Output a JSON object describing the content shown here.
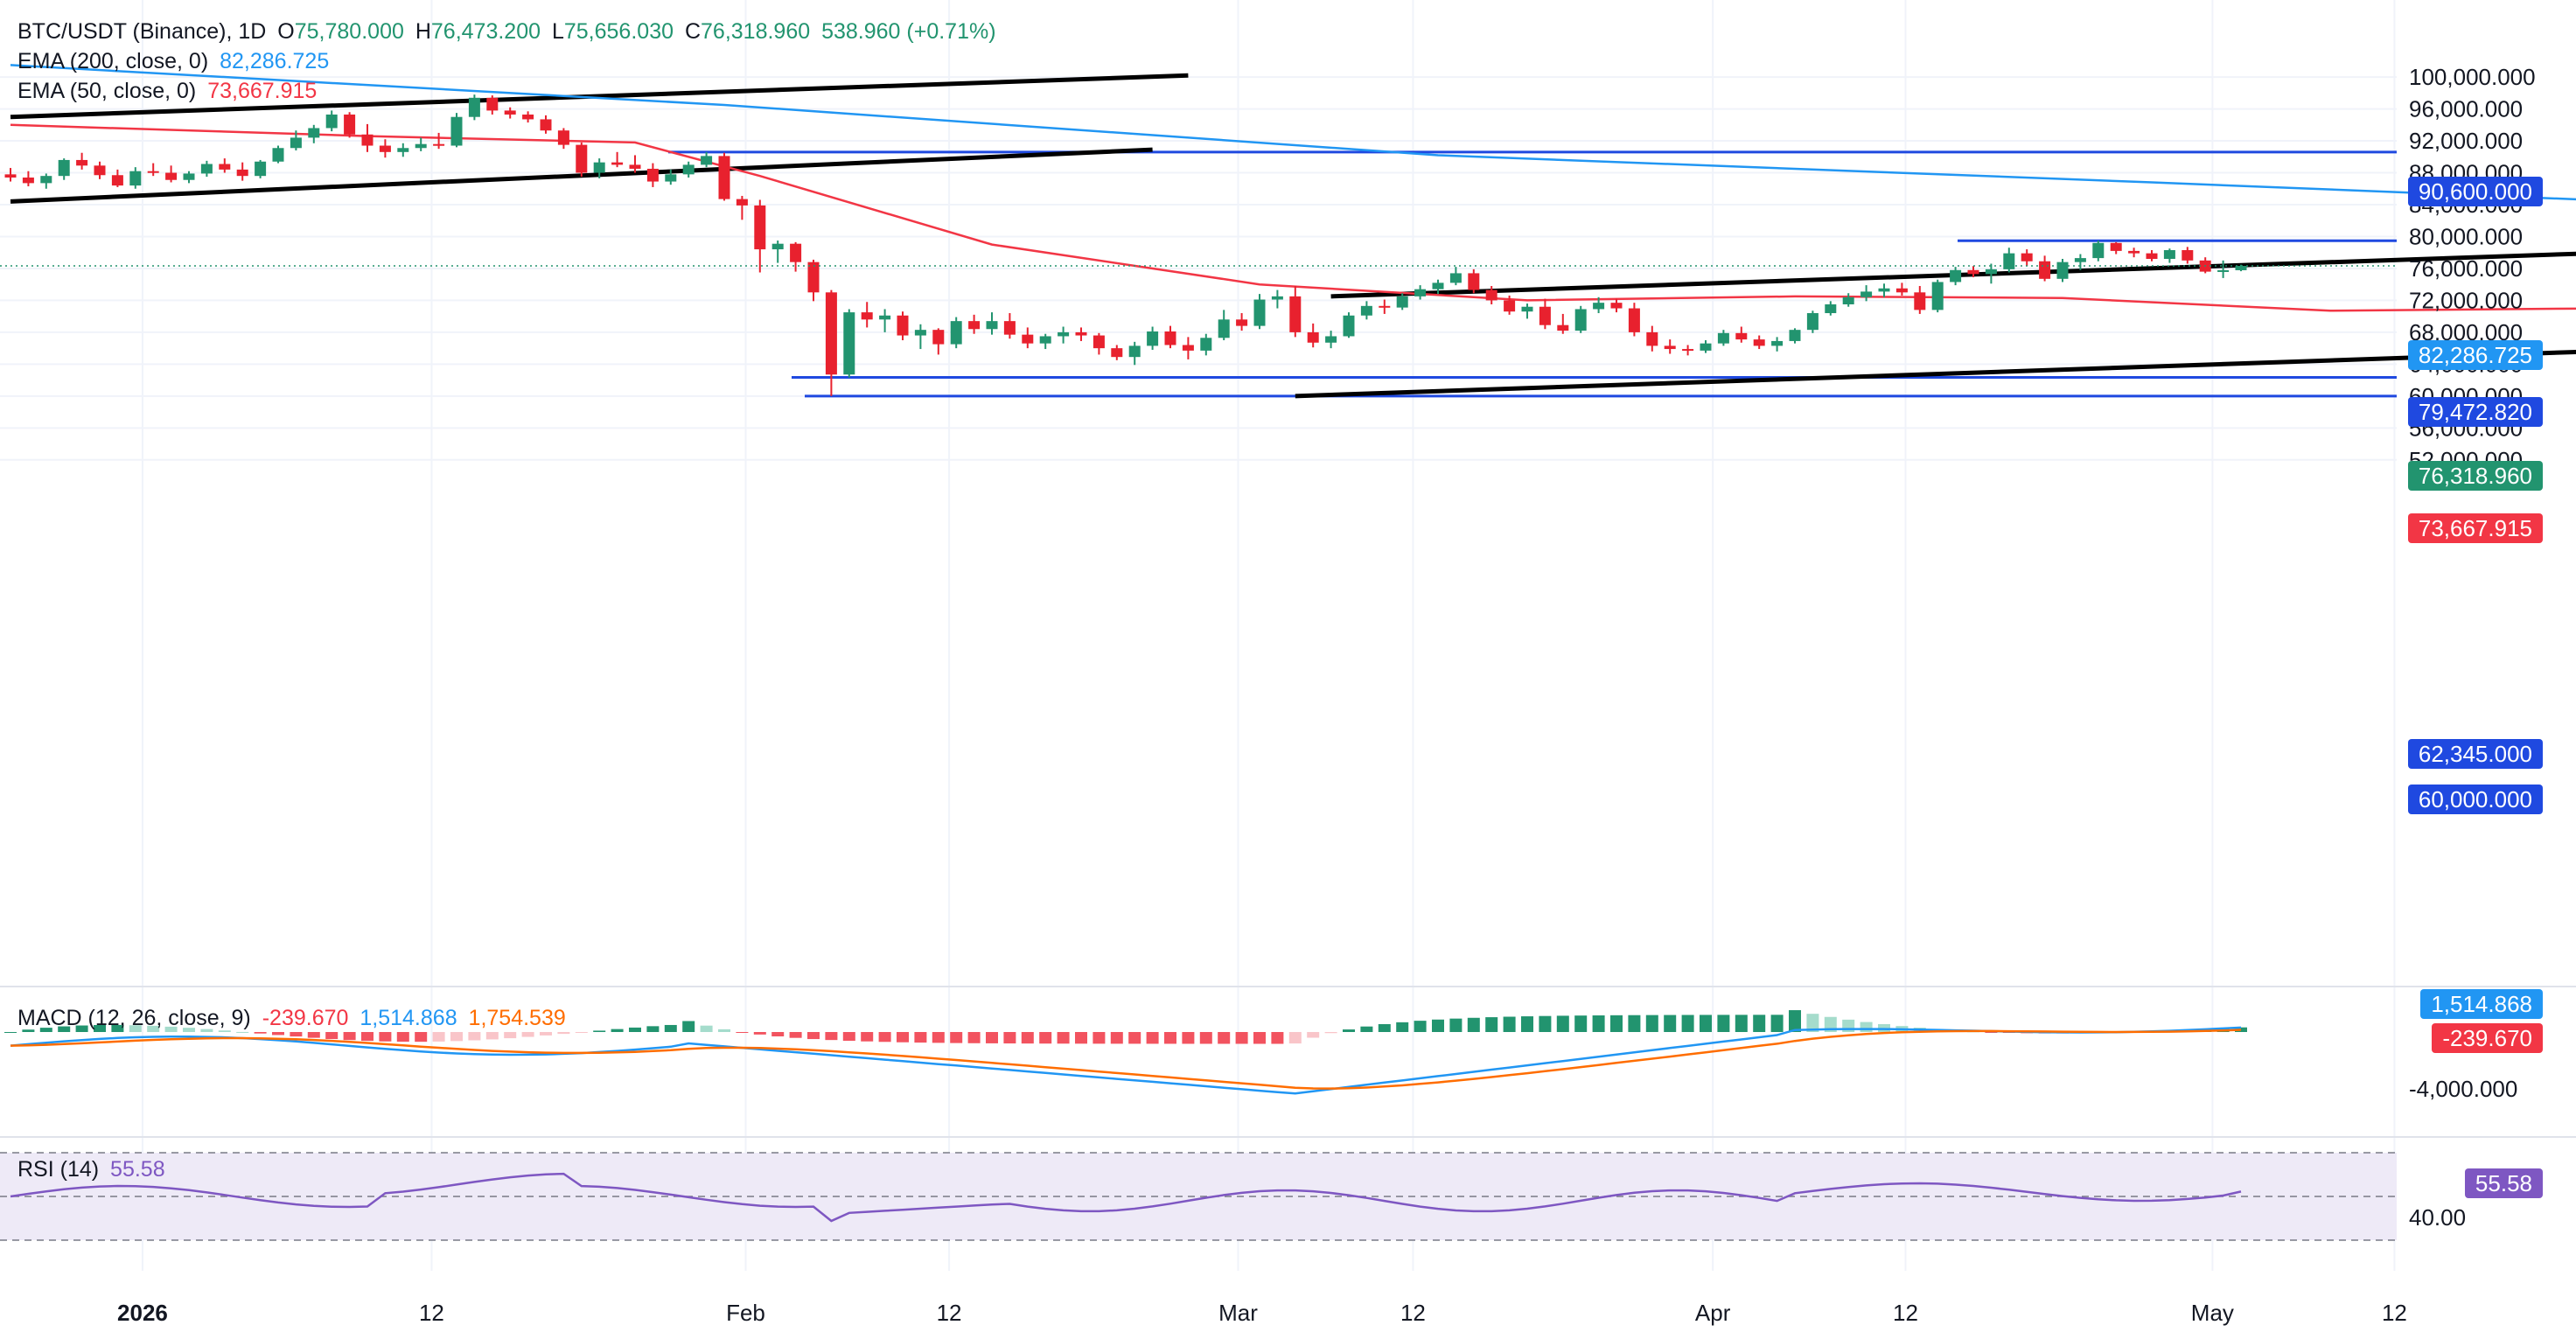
{
  "header": {
    "symbol": "BTC/USDT (Binance), 1D",
    "ohlc": {
      "open_label": "O",
      "open": "75,780.000",
      "high_label": "H",
      "high": "76,473.200",
      "low_label": "L",
      "low": "75,656.030",
      "close_label": "C",
      "close": "76,318.960",
      "change": "538.960 (+0.71%)"
    },
    "ema200": {
      "label": "EMA (200, close, 0)",
      "value": "82,286.725"
    },
    "ema50": {
      "label": "EMA (50, close, 0)",
      "value": "73,667.915"
    }
  },
  "price_axis": {
    "ticks": [
      "100,000.000",
      "96,000.000",
      "92,000.000",
      "88,000.000",
      "84,000.000",
      "80,000.000",
      "76,000.000",
      "72,000.000",
      "68,000.000",
      "64,000.000",
      "60,000.000",
      "56,000.000",
      "52,000.000"
    ]
  },
  "price_tags": {
    "level_90600": "90,600.000",
    "ema200": "82,286.725",
    "level_79472": "79,472.820",
    "last": "76,318.960",
    "ema50": "73,667.915",
    "level_62345": "62,345.000",
    "level_60000": "60,000.000"
  },
  "macd": {
    "label": "MACD (12, 26, close, 9)",
    "hist_value": "-239.670",
    "macd_value": "1,514.868",
    "signal_value": "1,754.539",
    "axis_tick": "-4,000.000"
  },
  "rsi": {
    "label": "RSI (14)",
    "value": "55.58",
    "axis_tick": "40.00"
  },
  "time_axis": {
    "labels": [
      "2026",
      "12",
      "Feb",
      "12",
      "Mar",
      "12",
      "Apr",
      "12",
      "May",
      "12"
    ]
  },
  "colors": {
    "up": "#22946f",
    "down": "#e8212e",
    "ema200": "#2196f3",
    "ema50": "#f23645",
    "level": "#1f49e0",
    "trend": "#000000",
    "macd": "#2196f3",
    "signal": "#ff6d00",
    "hist_up_strong": "#22946f",
    "hist_up_weak": "#a5dccc",
    "hist_down_strong": "#f2535f",
    "hist_down_weak": "#f9c5c9",
    "rsi": "#7e57c2",
    "rsi_band": "#eeeaf7"
  },
  "chart_data": {
    "type": "candlestick",
    "symbol": "BTC/USDT",
    "exchange": "Binance",
    "interval": "1D",
    "ylim": [
      50000,
      100000
    ],
    "ohlc_approx": [
      [
        87800,
        88600,
        86900,
        87400
      ],
      [
        87400,
        88200,
        86300,
        86700
      ],
      [
        86700,
        87900,
        86000,
        87600
      ],
      [
        87600,
        89800,
        87100,
        89600
      ],
      [
        89600,
        90500,
        88400,
        88900
      ],
      [
        88900,
        89400,
        87200,
        87700
      ],
      [
        87700,
        88400,
        86200,
        86400
      ],
      [
        86400,
        88700,
        86000,
        88200
      ],
      [
        88200,
        89200,
        87600,
        88000
      ],
      [
        88000,
        88900,
        86800,
        87100
      ],
      [
        87100,
        88200,
        86700,
        87900
      ],
      [
        87900,
        89500,
        87500,
        89100
      ],
      [
        89100,
        89800,
        88000,
        88400
      ],
      [
        88400,
        89300,
        87000,
        87600
      ],
      [
        87600,
        89600,
        87300,
        89400
      ],
      [
        89400,
        91400,
        89200,
        91100
      ],
      [
        91100,
        93300,
        90800,
        92400
      ],
      [
        92400,
        94000,
        91700,
        93600
      ],
      [
        93600,
        95800,
        93200,
        95300
      ],
      [
        95300,
        95600,
        92400,
        92800
      ],
      [
        92800,
        94100,
        90600,
        91400
      ],
      [
        91400,
        92200,
        89900,
        90600
      ],
      [
        90600,
        91700,
        90000,
        91100
      ],
      [
        91100,
        92400,
        90700,
        91600
      ],
      [
        91600,
        93000,
        91000,
        91400
      ],
      [
        91400,
        95500,
        91200,
        95000
      ],
      [
        95000,
        97800,
        94600,
        97400
      ],
      [
        97400,
        97700,
        95300,
        95800
      ],
      [
        95800,
        96200,
        94800,
        95300
      ],
      [
        95300,
        95700,
        94300,
        94700
      ],
      [
        94700,
        95200,
        92900,
        93300
      ],
      [
        93300,
        93600,
        91000,
        91500
      ],
      [
        91500,
        91800,
        87500,
        88000
      ],
      [
        88000,
        89800,
        87300,
        89300
      ],
      [
        89300,
        90600,
        88700,
        89000
      ],
      [
        89000,
        90200,
        88000,
        88500
      ],
      [
        88500,
        89200,
        86200,
        86900
      ],
      [
        86900,
        88400,
        86500,
        87800
      ],
      [
        87800,
        89400,
        87400,
        89000
      ],
      [
        89000,
        90600,
        88700,
        90100
      ],
      [
        90100,
        90500,
        84500,
        84700
      ],
      [
        84700,
        85100,
        82100,
        83900
      ],
      [
        83900,
        84600,
        75500,
        78400
      ],
      [
        78400,
        79500,
        76700,
        79100
      ],
      [
        79100,
        79300,
        75600,
        76800
      ],
      [
        76800,
        77100,
        71900,
        73000
      ],
      [
        73000,
        73300,
        60000,
        62700
      ],
      [
        62700,
        70900,
        62300,
        70500
      ],
      [
        70500,
        71800,
        68600,
        69600
      ],
      [
        69600,
        70900,
        68000,
        70100
      ],
      [
        70100,
        70600,
        67000,
        67600
      ],
      [
        67600,
        69000,
        65900,
        68300
      ],
      [
        68300,
        68500,
        65200,
        66500
      ],
      [
        66500,
        69900,
        66000,
        69400
      ],
      [
        69400,
        70200,
        67800,
        68400
      ],
      [
        68400,
        70500,
        67700,
        69400
      ],
      [
        69400,
        70400,
        67200,
        67700
      ],
      [
        67700,
        68600,
        66000,
        66600
      ],
      [
        66600,
        67800,
        65900,
        67500
      ],
      [
        67500,
        68700,
        66600,
        68000
      ],
      [
        68000,
        68600,
        66900,
        67600
      ],
      [
        67600,
        67900,
        65200,
        66000
      ],
      [
        66000,
        66400,
        64500,
        64900
      ],
      [
        64900,
        66800,
        63900,
        66300
      ],
      [
        66300,
        68700,
        65800,
        68100
      ],
      [
        68100,
        68800,
        66000,
        66400
      ],
      [
        66400,
        67400,
        64600,
        65700
      ],
      [
        65700,
        67800,
        65100,
        67300
      ],
      [
        67300,
        70800,
        67000,
        69600
      ],
      [
        69600,
        70400,
        68200,
        68800
      ],
      [
        68800,
        72800,
        68400,
        72100
      ],
      [
        72100,
        73300,
        71000,
        72500
      ],
      [
        72500,
        73800,
        67400,
        68000
      ],
      [
        68000,
        69100,
        66100,
        66700
      ],
      [
        66700,
        68200,
        66000,
        67500
      ],
      [
        67500,
        70500,
        67300,
        70100
      ],
      [
        70100,
        71900,
        69600,
        71300
      ],
      [
        71300,
        72100,
        70300,
        71100
      ],
      [
        71100,
        72900,
        70800,
        72500
      ],
      [
        72500,
        73900,
        72100,
        73400
      ],
      [
        73400,
        74600,
        72800,
        74200
      ],
      [
        74200,
        76200,
        73900,
        75400
      ],
      [
        75400,
        75900,
        72900,
        73300
      ],
      [
        73300,
        73800,
        71500,
        72000
      ],
      [
        72000,
        72600,
        70200,
        70600
      ],
      [
        70600,
        71600,
        69700,
        71200
      ],
      [
        71200,
        72200,
        68400,
        68900
      ],
      [
        68900,
        70300,
        67800,
        68200
      ],
      [
        68200,
        71300,
        67900,
        70900
      ],
      [
        70900,
        72400,
        70400,
        71700
      ],
      [
        71700,
        72200,
        70500,
        71000
      ],
      [
        71000,
        71700,
        67500,
        68000
      ],
      [
        68000,
        68800,
        65600,
        66300
      ],
      [
        66300,
        67100,
        65300,
        65900
      ],
      [
        65900,
        66400,
        65100,
        65700
      ],
      [
        65700,
        67000,
        65400,
        66600
      ],
      [
        66600,
        68300,
        66300,
        67900
      ],
      [
        67900,
        68700,
        66700,
        67100
      ],
      [
        67100,
        67600,
        65900,
        66300
      ],
      [
        66300,
        67400,
        65600,
        66900
      ],
      [
        66900,
        68500,
        66600,
        68300
      ],
      [
        68300,
        70700,
        67900,
        70400
      ],
      [
        70400,
        71900,
        70100,
        71500
      ],
      [
        71500,
        72900,
        71200,
        72400
      ],
      [
        72400,
        73900,
        71900,
        73100
      ],
      [
        73100,
        74100,
        72400,
        73500
      ],
      [
        73500,
        74200,
        72600,
        73000
      ],
      [
        73000,
        73800,
        70300,
        70800
      ],
      [
        70800,
        74600,
        70500,
        74300
      ],
      [
        74300,
        76200,
        73900,
        75800
      ],
      [
        75800,
        76300,
        74900,
        75300
      ],
      [
        75300,
        76600,
        74100,
        75900
      ],
      [
        75900,
        78600,
        75500,
        77900
      ],
      [
        77900,
        78400,
        76300,
        76900
      ],
      [
        76900,
        77600,
        74400,
        74700
      ],
      [
        74700,
        77200,
        74300,
        76800
      ],
      [
        76800,
        77800,
        75800,
        77300
      ],
      [
        77300,
        79500,
        76900,
        79200
      ],
      [
        79200,
        79300,
        77800,
        78200
      ],
      [
        78200,
        78600,
        77400,
        77900
      ],
      [
        77900,
        78300,
        76900,
        77200
      ],
      [
        77200,
        78500,
        76700,
        78300
      ],
      [
        78300,
        78700,
        76600,
        77000
      ],
      [
        77000,
        77400,
        75400,
        75600
      ],
      [
        75600,
        77000,
        74800,
        75780
      ],
      [
        75780,
        76473,
        75656,
        76319
      ]
    ],
    "ema200_approx": [
      [
        0,
        101500
      ],
      [
        40,
        96500
      ],
      [
        80,
        90200
      ],
      [
        120,
        86800
      ],
      [
        148,
        84300
      ],
      [
        170,
        83100
      ],
      [
        185,
        82287
      ]
    ],
    "ema50_approx": [
      [
        0,
        94000
      ],
      [
        20,
        92600
      ],
      [
        35,
        91800
      ],
      [
        42,
        87600
      ],
      [
        55,
        79000
      ],
      [
        70,
        74000
      ],
      [
        85,
        72000
      ],
      [
        100,
        72500
      ],
      [
        115,
        72300
      ],
      [
        130,
        70700
      ],
      [
        145,
        71000
      ],
      [
        160,
        72600
      ],
      [
        175,
        73300
      ],
      [
        185,
        73668
      ]
    ],
    "levels": [
      90600,
      79472.82,
      62345,
      60000
    ],
    "trendlines": [
      {
        "from": [
          0,
          95000
        ],
        "to": [
          66,
          100200
        ]
      },
      {
        "from": [
          0,
          84400
        ],
        "to": [
          64,
          90900
        ]
      },
      {
        "from": [
          72,
          60000
        ],
        "to": [
          198,
          69700
        ]
      },
      {
        "from": [
          74,
          72500
        ],
        "to": [
          193,
          81600
        ]
      }
    ],
    "last_price": 76318.96
  }
}
